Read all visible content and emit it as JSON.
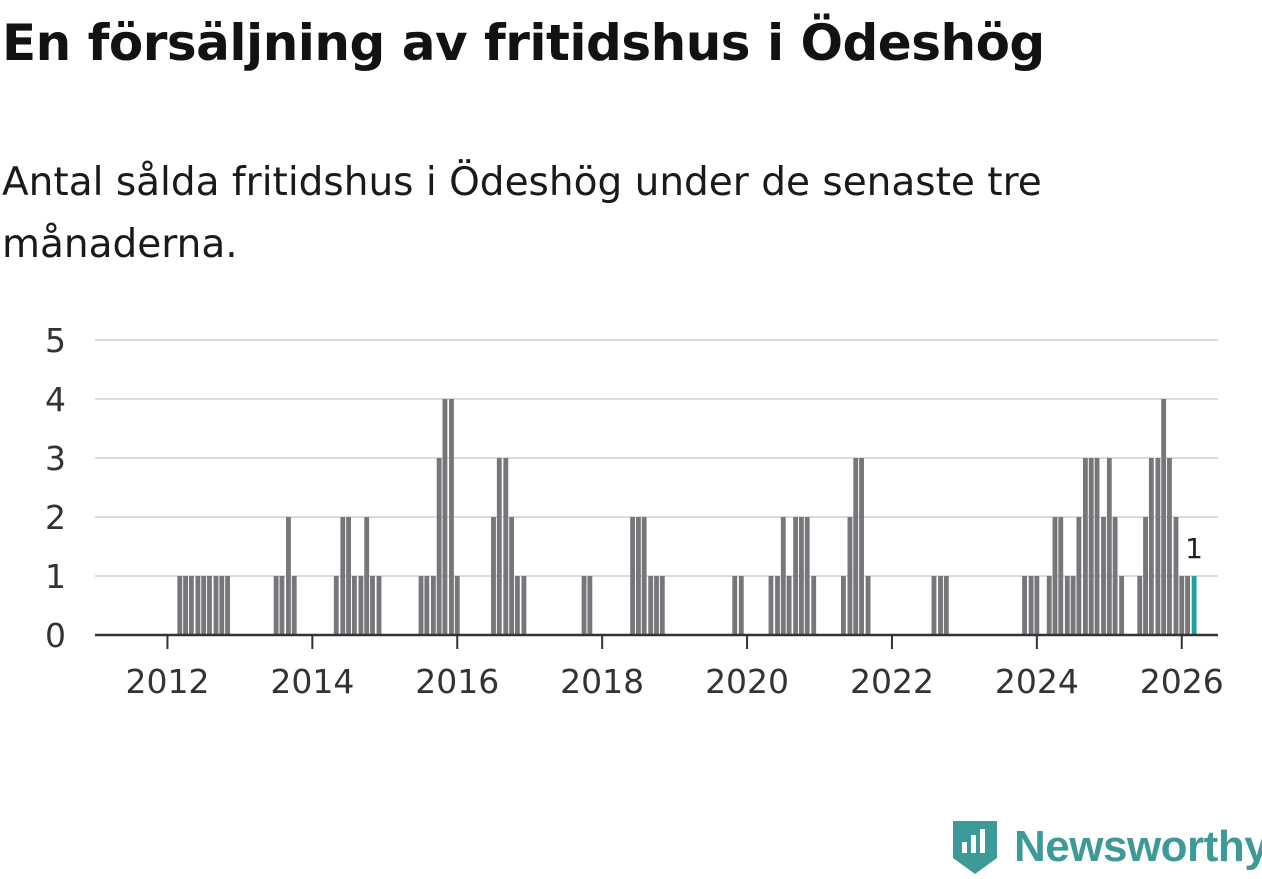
{
  "title": "En försäljning av fritidshus i Ödeshög",
  "subtitle": "Antal sålda fritidshus i Ödeshög under de senaste tre månaderna.",
  "brand": {
    "name": "Newsworthy",
    "color": "#3d9a98",
    "icon": "newsworthy-logo-icon"
  },
  "chart_data": {
    "type": "bar",
    "title": "En försäljning av fritidshus i Ödeshög",
    "xlabel": "",
    "ylabel": "",
    "ylim": [
      0,
      5
    ],
    "yticks": [
      0,
      1,
      2,
      3,
      4,
      5
    ],
    "xlim": [
      2011,
      2026.5
    ],
    "xticks": [
      2012,
      2014,
      2016,
      2018,
      2020,
      2022,
      2024,
      2026
    ],
    "grid": true,
    "bar_color": "#77777b",
    "highlight_color": "#1aa39a",
    "annotation": {
      "x": 2026.17,
      "value": 1,
      "label": "1"
    },
    "bars": [
      {
        "x": 2012.17,
        "value": 1
      },
      {
        "x": 2012.25,
        "value": 1
      },
      {
        "x": 2012.33,
        "value": 1
      },
      {
        "x": 2012.42,
        "value": 1
      },
      {
        "x": 2012.5,
        "value": 1
      },
      {
        "x": 2012.58,
        "value": 1
      },
      {
        "x": 2012.67,
        "value": 1
      },
      {
        "x": 2012.75,
        "value": 1
      },
      {
        "x": 2012.83,
        "value": 1
      },
      {
        "x": 2013.5,
        "value": 1
      },
      {
        "x": 2013.58,
        "value": 1
      },
      {
        "x": 2013.67,
        "value": 2
      },
      {
        "x": 2013.75,
        "value": 1
      },
      {
        "x": 2014.33,
        "value": 1
      },
      {
        "x": 2014.42,
        "value": 2
      },
      {
        "x": 2014.5,
        "value": 2
      },
      {
        "x": 2014.58,
        "value": 1
      },
      {
        "x": 2014.67,
        "value": 1
      },
      {
        "x": 2014.75,
        "value": 2
      },
      {
        "x": 2014.83,
        "value": 1
      },
      {
        "x": 2014.92,
        "value": 1
      },
      {
        "x": 2015.5,
        "value": 1
      },
      {
        "x": 2015.58,
        "value": 1
      },
      {
        "x": 2015.67,
        "value": 1
      },
      {
        "x": 2015.75,
        "value": 3
      },
      {
        "x": 2015.83,
        "value": 4
      },
      {
        "x": 2015.92,
        "value": 4
      },
      {
        "x": 2016.0,
        "value": 1
      },
      {
        "x": 2016.5,
        "value": 2
      },
      {
        "x": 2016.58,
        "value": 3
      },
      {
        "x": 2016.67,
        "value": 3
      },
      {
        "x": 2016.75,
        "value": 2
      },
      {
        "x": 2016.83,
        "value": 1
      },
      {
        "x": 2016.92,
        "value": 1
      },
      {
        "x": 2017.75,
        "value": 1
      },
      {
        "x": 2017.83,
        "value": 1
      },
      {
        "x": 2018.42,
        "value": 2
      },
      {
        "x": 2018.5,
        "value": 2
      },
      {
        "x": 2018.58,
        "value": 2
      },
      {
        "x": 2018.67,
        "value": 1
      },
      {
        "x": 2018.75,
        "value": 1
      },
      {
        "x": 2018.83,
        "value": 1
      },
      {
        "x": 2019.83,
        "value": 1
      },
      {
        "x": 2019.92,
        "value": 1
      },
      {
        "x": 2020.33,
        "value": 1
      },
      {
        "x": 2020.42,
        "value": 1
      },
      {
        "x": 2020.5,
        "value": 2
      },
      {
        "x": 2020.58,
        "value": 1
      },
      {
        "x": 2020.67,
        "value": 2
      },
      {
        "x": 2020.75,
        "value": 2
      },
      {
        "x": 2020.83,
        "value": 2
      },
      {
        "x": 2020.92,
        "value": 1
      },
      {
        "x": 2021.33,
        "value": 1
      },
      {
        "x": 2021.42,
        "value": 2
      },
      {
        "x": 2021.5,
        "value": 3
      },
      {
        "x": 2021.58,
        "value": 3
      },
      {
        "x": 2021.67,
        "value": 1
      },
      {
        "x": 2022.58,
        "value": 1
      },
      {
        "x": 2022.67,
        "value": 1
      },
      {
        "x": 2022.75,
        "value": 1
      },
      {
        "x": 2023.83,
        "value": 1
      },
      {
        "x": 2023.92,
        "value": 1
      },
      {
        "x": 2024.0,
        "value": 1
      },
      {
        "x": 2024.17,
        "value": 1
      },
      {
        "x": 2024.25,
        "value": 2
      },
      {
        "x": 2024.33,
        "value": 2
      },
      {
        "x": 2024.42,
        "value": 1
      },
      {
        "x": 2024.5,
        "value": 1
      },
      {
        "x": 2024.58,
        "value": 2
      },
      {
        "x": 2024.67,
        "value": 3
      },
      {
        "x": 2024.75,
        "value": 3
      },
      {
        "x": 2024.83,
        "value": 3
      },
      {
        "x": 2024.92,
        "value": 2
      },
      {
        "x": 2025.0,
        "value": 3
      },
      {
        "x": 2025.08,
        "value": 2
      },
      {
        "x": 2025.17,
        "value": 1
      },
      {
        "x": 2025.42,
        "value": 1
      },
      {
        "x": 2025.5,
        "value": 2
      },
      {
        "x": 2025.58,
        "value": 3
      },
      {
        "x": 2025.67,
        "value": 3
      },
      {
        "x": 2025.75,
        "value": 4
      },
      {
        "x": 2025.83,
        "value": 3
      },
      {
        "x": 2025.92,
        "value": 2
      },
      {
        "x": 2026.0,
        "value": 1
      },
      {
        "x": 2026.08,
        "value": 1
      },
      {
        "x": 2026.17,
        "value": 1,
        "highlight": true
      }
    ]
  }
}
